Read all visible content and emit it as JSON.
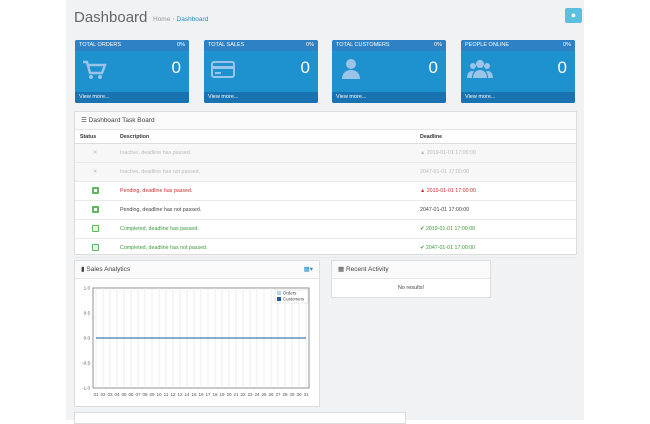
{
  "header": {
    "title": "Dashboard",
    "breadcrumb_home": "Home",
    "breadcrumb_current": "Dashboard",
    "settings_icon": "gear-icon"
  },
  "tiles": [
    {
      "title": "TOTAL ORDERS",
      "percent": "0%",
      "value": "0",
      "footer": "View more...",
      "icon": "cart-icon"
    },
    {
      "title": "TOTAL SALES",
      "percent": "0%",
      "value": "0",
      "footer": "View more...",
      "icon": "credit-card-icon"
    },
    {
      "title": "TOTAL CUSTOMERS",
      "percent": "0%",
      "value": "0",
      "footer": "View more...",
      "icon": "user-icon"
    },
    {
      "title": "PEOPLE ONLINE",
      "percent": "0%",
      "value": "0",
      "footer": "View more...",
      "icon": "users-icon"
    }
  ],
  "taskboard": {
    "title": "Dashboard Task Board",
    "columns": [
      "Status",
      "Description",
      "Deadline"
    ],
    "rows": [
      {
        "state": "inactive",
        "description": "Inactive, deadline has passed.",
        "deadline": "2019-01-01 17:00:00",
        "deadline_icon": "warning-icon"
      },
      {
        "state": "inactive",
        "description": "Inactive, deadline has not passed.",
        "deadline": "2047-01-01 17:00:00",
        "deadline_icon": ""
      },
      {
        "state": "pending",
        "description": "Pending, deadline has passed.",
        "deadline": "2019-01-01 17:00:00",
        "deadline_icon": "warning-icon"
      },
      {
        "state": "pend-ok",
        "description": "Pending, deadline has not passed.",
        "deadline": "2047-01-01 17:00:00",
        "deadline_icon": ""
      },
      {
        "state": "done",
        "description": "Completed, deadline has passed.",
        "deadline": "2019-01-01 17:00:00",
        "deadline_icon": "check-icon"
      },
      {
        "state": "done",
        "description": "Completed, deadline has not passed.",
        "deadline": "2047-01-01 17:00:00",
        "deadline_icon": "check-icon"
      }
    ]
  },
  "analytics": {
    "title": "Sales Analytics",
    "calendar_icon": "calendar-icon"
  },
  "chart_data": {
    "type": "line",
    "x": [
      "01",
      "02",
      "03",
      "04",
      "05",
      "06",
      "07",
      "08",
      "09",
      "10",
      "11",
      "12",
      "13",
      "14",
      "15",
      "16",
      "17",
      "18",
      "19",
      "20",
      "21",
      "22",
      "23",
      "24",
      "25",
      "26",
      "27",
      "28",
      "29",
      "30",
      "31"
    ],
    "series": [
      {
        "name": "Orders",
        "values": [
          0,
          0,
          0,
          0,
          0,
          0,
          0,
          0,
          0,
          0,
          0,
          0,
          0,
          0,
          0,
          0,
          0,
          0,
          0,
          0,
          0,
          0,
          0,
          0,
          0,
          0,
          0,
          0,
          0,
          0,
          0
        ],
        "color": "#b3d3ea"
      },
      {
        "name": "Customers",
        "values": [
          0,
          0,
          0,
          0,
          0,
          0,
          0,
          0,
          0,
          0,
          0,
          0,
          0,
          0,
          0,
          0,
          0,
          0,
          0,
          0,
          0,
          0,
          0,
          0,
          0,
          0,
          0,
          0,
          0,
          0,
          0
        ],
        "color": "#1e5a9c"
      }
    ],
    "yticks": [
      "1.0",
      "0.5",
      "0.0",
      "-0.5",
      "-1.0"
    ],
    "ylim": [
      -1,
      1
    ],
    "grid": true,
    "legend": "top-right"
  },
  "recent_activity": {
    "title": "Recent Activity",
    "empty": "No results!"
  }
}
